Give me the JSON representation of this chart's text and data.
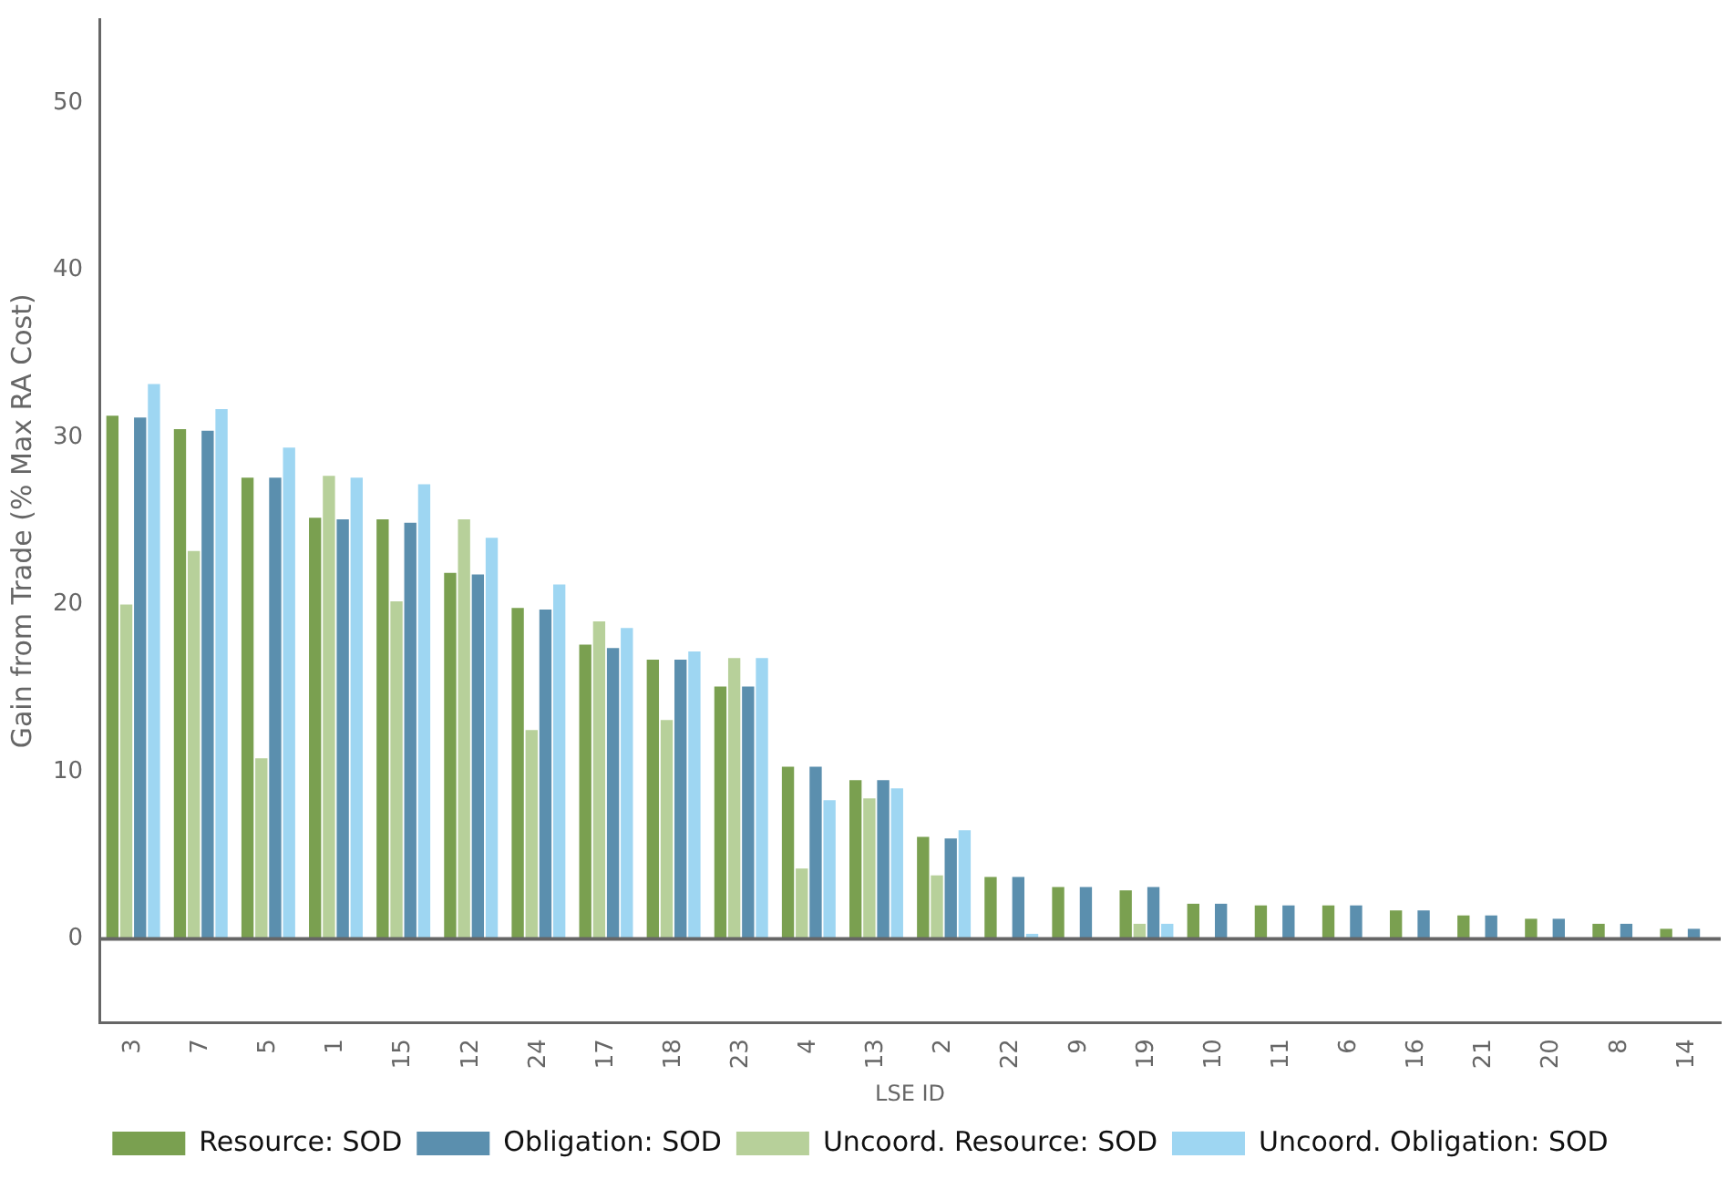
{
  "chart_data": {
    "type": "bar",
    "xlabel": "LSE ID",
    "ylabel": "Gain from Trade (% Max RA Cost)",
    "categories": [
      "3",
      "7",
      "5",
      "1",
      "15",
      "12",
      "24",
      "17",
      "18",
      "23",
      "4",
      "13",
      "2",
      "22",
      "9",
      "19",
      "10",
      "11",
      "6",
      "16",
      "21",
      "20",
      "8",
      "14"
    ],
    "series": [
      {
        "name": "Resource: SOD",
        "color": "#7aa050",
        "values": [
          31.3,
          30.5,
          27.6,
          25.2,
          25.1,
          21.9,
          19.8,
          17.6,
          16.7,
          15.1,
          10.3,
          9.5,
          6.1,
          3.7,
          3.1,
          2.9,
          2.1,
          2.0,
          2.0,
          1.7,
          1.4,
          1.2,
          0.9,
          0.6
        ]
      },
      {
        "name": "Uncoord. Resource: SOD",
        "color": "#b7d09a",
        "values": [
          20.0,
          23.2,
          10.8,
          27.7,
          20.2,
          25.1,
          12.5,
          19.0,
          13.1,
          16.8,
          4.2,
          8.4,
          3.8,
          0,
          0,
          0.9,
          0,
          0,
          0,
          0,
          0,
          0,
          0,
          0
        ]
      },
      {
        "name": "Obligation: SOD",
        "color": "#5b8fae",
        "values": [
          31.2,
          30.4,
          27.6,
          25.1,
          24.9,
          21.8,
          19.7,
          17.4,
          16.7,
          15.1,
          10.3,
          9.5,
          6.0,
          3.7,
          3.1,
          3.1,
          2.1,
          2.0,
          2.0,
          1.7,
          1.4,
          1.2,
          0.9,
          0.6
        ]
      },
      {
        "name": "Uncoord. Obligation: SOD",
        "color": "#9ed6f2",
        "values": [
          33.2,
          31.7,
          29.4,
          27.6,
          27.2,
          24.0,
          21.2,
          18.6,
          17.2,
          16.8,
          8.3,
          9.0,
          6.5,
          0.3,
          0,
          0.9,
          0,
          0,
          0,
          0,
          0,
          null,
          0,
          0
        ]
      }
    ],
    "ylim": [
      -5,
      55
    ],
    "yticks": [
      0,
      10,
      20,
      30,
      40,
      50
    ],
    "grid": false,
    "legend": "bottom",
    "ref_lines": [
      {
        "axis": "y",
        "value": 0,
        "color": "#666666"
      }
    ]
  }
}
